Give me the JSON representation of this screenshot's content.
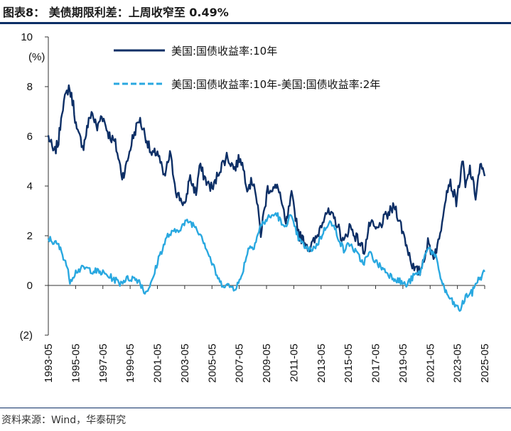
{
  "header": {
    "title": "图表8：  美债期限利差：上周收窄至 0.49%"
  },
  "footer": {
    "source": "资料来源：Wind，华泰研究"
  },
  "colors": {
    "rule": "#0d2f66",
    "series_10y": "#0d2f66",
    "series_spread": "#29a8e0"
  },
  "chart_data": {
    "type": "line",
    "title": "",
    "xlabel": "",
    "ylabel": "(%)",
    "ylim": [
      -2,
      10
    ],
    "yticks": [
      10,
      8,
      6,
      4,
      2,
      0,
      -2
    ],
    "ytick_labels": [
      "10",
      "8",
      "6",
      "4",
      "2",
      "0",
      "(2)"
    ],
    "x_ticks": [
      "1993-05",
      "1995-05",
      "1997-05",
      "1999-05",
      "2001-05",
      "2003-05",
      "2005-05",
      "2007-05",
      "2009-05",
      "2011-05",
      "2013-05",
      "2015-05",
      "2017-05",
      "2019-05",
      "2021-05",
      "2023-05",
      "2025-05"
    ],
    "legend_position": "top",
    "series": [
      {
        "name": "美国:国债收益率:10年",
        "style": "solid",
        "points": [
          [
            "1993-05",
            6.0
          ],
          [
            "1993-10",
            5.3
          ],
          [
            "1994-02",
            5.8
          ],
          [
            "1994-05",
            7.1
          ],
          [
            "1994-11",
            8.0
          ],
          [
            "1995-03",
            7.3
          ],
          [
            "1995-06",
            6.2
          ],
          [
            "1995-12",
            5.6
          ],
          [
            "1996-03",
            6.3
          ],
          [
            "1996-07",
            7.0
          ],
          [
            "1996-12",
            6.3
          ],
          [
            "1997-04",
            6.9
          ],
          [
            "1997-10",
            6.1
          ],
          [
            "1998-04",
            5.7
          ],
          [
            "1998-10",
            4.4
          ],
          [
            "1999-01",
            4.7
          ],
          [
            "1999-07",
            5.9
          ],
          [
            "2000-01",
            6.7
          ],
          [
            "2000-06",
            6.1
          ],
          [
            "2000-12",
            5.2
          ],
          [
            "2001-05",
            5.4
          ],
          [
            "2001-11",
            4.3
          ],
          [
            "2002-04",
            5.3
          ],
          [
            "2002-10",
            3.7
          ],
          [
            "2003-06",
            3.2
          ],
          [
            "2003-09",
            4.4
          ],
          [
            "2004-03",
            3.7
          ],
          [
            "2004-06",
            4.8
          ],
          [
            "2005-01",
            4.1
          ],
          [
            "2005-06",
            3.9
          ],
          [
            "2005-11",
            4.6
          ],
          [
            "2006-06",
            5.2
          ],
          [
            "2007-01",
            4.7
          ],
          [
            "2007-06",
            5.2
          ],
          [
            "2007-12",
            4.0
          ],
          [
            "2008-06",
            4.2
          ],
          [
            "2008-12",
            2.1
          ],
          [
            "2009-06",
            3.9
          ],
          [
            "2010-04",
            3.9
          ],
          [
            "2010-10",
            2.4
          ],
          [
            "2011-03",
            3.6
          ],
          [
            "2011-10",
            2.0
          ],
          [
            "2012-07",
            1.5
          ],
          [
            "2013-01",
            1.9
          ],
          [
            "2013-09",
            3.0
          ],
          [
            "2014-06",
            2.6
          ],
          [
            "2015-01",
            1.7
          ],
          [
            "2015-06",
            2.4
          ],
          [
            "2016-07",
            1.4
          ],
          [
            "2016-12",
            2.5
          ],
          [
            "2017-06",
            2.2
          ],
          [
            "2018-01",
            2.7
          ],
          [
            "2018-10",
            3.2
          ],
          [
            "2019-06",
            2.0
          ],
          [
            "2019-09",
            1.5
          ],
          [
            "2020-03",
            0.6
          ],
          [
            "2020-08",
            0.55
          ],
          [
            "2021-03",
            1.7
          ],
          [
            "2021-08",
            1.2
          ],
          [
            "2022-01",
            1.8
          ],
          [
            "2022-06",
            3.5
          ],
          [
            "2022-10",
            4.2
          ],
          [
            "2023-04",
            3.4
          ],
          [
            "2023-10",
            5.0
          ],
          [
            "2023-12",
            3.9
          ],
          [
            "2024-04",
            4.7
          ],
          [
            "2024-09",
            3.6
          ],
          [
            "2025-01",
            4.8
          ],
          [
            "2025-05",
            4.4
          ]
        ]
      },
      {
        "name": "美国:国债收益率:10年-美国:国债收益率:2年",
        "style": "dashed",
        "points": [
          [
            "1993-05",
            1.9
          ],
          [
            "1994-02",
            1.6
          ],
          [
            "1994-08",
            1.0
          ],
          [
            "1994-12",
            0.2
          ],
          [
            "1995-06",
            0.6
          ],
          [
            "1996-01",
            0.7
          ],
          [
            "1996-08",
            0.6
          ],
          [
            "1997-05",
            0.5
          ],
          [
            "1998-01",
            0.3
          ],
          [
            "1998-08",
            0.1
          ],
          [
            "1999-01",
            0.25
          ],
          [
            "1999-07",
            0.3
          ],
          [
            "2000-01",
            0.2
          ],
          [
            "2000-06",
            -0.3
          ],
          [
            "2000-12",
            0.1
          ],
          [
            "2001-06",
            1.1
          ],
          [
            "2002-02",
            2.0
          ],
          [
            "2002-10",
            2.2
          ],
          [
            "2003-08",
            2.6
          ],
          [
            "2004-02",
            2.4
          ],
          [
            "2004-08",
            2.0
          ],
          [
            "2005-05",
            0.9
          ],
          [
            "2005-12",
            0.1
          ],
          [
            "2006-06",
            0.0
          ],
          [
            "2007-01",
            -0.1
          ],
          [
            "2007-06",
            0.2
          ],
          [
            "2008-01",
            1.5
          ],
          [
            "2008-06",
            1.6
          ],
          [
            "2008-12",
            2.4
          ],
          [
            "2009-06",
            2.7
          ],
          [
            "2010-02",
            2.9
          ],
          [
            "2010-08",
            2.3
          ],
          [
            "2011-02",
            2.8
          ],
          [
            "2011-10",
            1.8
          ],
          [
            "2012-06",
            1.4
          ],
          [
            "2013-01",
            1.6
          ],
          [
            "2013-12",
            2.6
          ],
          [
            "2014-06",
            2.2
          ],
          [
            "2015-01",
            1.4
          ],
          [
            "2015-06",
            1.7
          ],
          [
            "2016-06",
            0.9
          ],
          [
            "2016-12",
            1.3
          ],
          [
            "2017-06",
            0.9
          ],
          [
            "2018-06",
            0.4
          ],
          [
            "2019-03",
            0.15
          ],
          [
            "2019-08",
            0.0
          ],
          [
            "2020-03",
            0.4
          ],
          [
            "2020-08",
            0.5
          ],
          [
            "2021-03",
            1.6
          ],
          [
            "2021-10",
            1.1
          ],
          [
            "2022-03",
            0.2
          ],
          [
            "2022-07",
            -0.3
          ],
          [
            "2023-01",
            -0.7
          ],
          [
            "2023-07",
            -1.0
          ],
          [
            "2024-01",
            -0.4
          ],
          [
            "2024-06",
            -0.3
          ],
          [
            "2024-09",
            0.1
          ],
          [
            "2025-01",
            0.3
          ],
          [
            "2025-05",
            0.55
          ]
        ]
      }
    ]
  }
}
